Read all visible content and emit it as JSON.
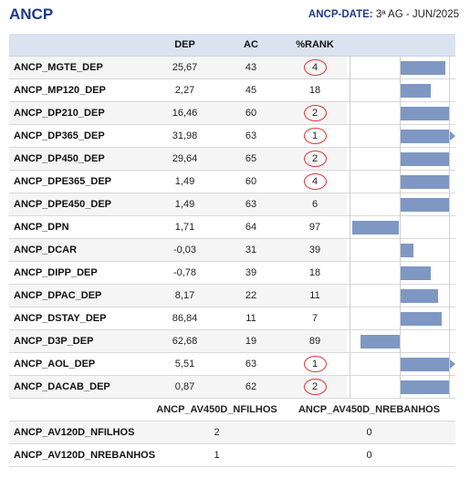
{
  "title": "ANCP",
  "date_label": "ANCP-DATE:",
  "date_value": "3ª AG - JUN/2025",
  "columns": {
    "name": "",
    "dep": "DEP",
    "ac": "AC",
    "rank": "%RANK"
  },
  "rows": [
    {
      "name": "ANCP_MGTE_DEP",
      "dep": "25,67",
      "ac": "43",
      "rank": "4",
      "circled": true,
      "dep_value": 25.67
    },
    {
      "name": "ANCP_MP120_DEP",
      "dep": "2,27",
      "ac": "45",
      "rank": "18",
      "circled": false,
      "dep_value": 2.27
    },
    {
      "name": "ANCP_DP210_DEP",
      "dep": "16,46",
      "ac": "60",
      "rank": "2",
      "circled": true,
      "dep_value": 16.46
    },
    {
      "name": "ANCP_DP365_DEP",
      "dep": "31,98",
      "ac": "63",
      "rank": "1",
      "circled": true,
      "dep_value": 31.98
    },
    {
      "name": "ANCP_DP450_DEP",
      "dep": "29,64",
      "ac": "65",
      "rank": "2",
      "circled": true,
      "dep_value": 29.64
    },
    {
      "name": "ANCP_DPE365_DEP",
      "dep": "1,49",
      "ac": "60",
      "rank": "4",
      "circled": true,
      "dep_value": 1.49
    },
    {
      "name": "ANCP_DPE450_DEP",
      "dep": "1,49",
      "ac": "63",
      "rank": "6",
      "circled": false,
      "dep_value": 1.49
    },
    {
      "name": "ANCP_DPN",
      "dep": "1,71",
      "ac": "64",
      "rank": "97",
      "circled": false,
      "dep_value": 1.71
    },
    {
      "name": "ANCP_DCAR",
      "dep": "-0,03",
      "ac": "31",
      "rank": "39",
      "circled": false,
      "dep_value": -0.03
    },
    {
      "name": "ANCP_DIPP_DEP",
      "dep": "-0,78",
      "ac": "39",
      "rank": "18",
      "circled": false,
      "dep_value": -0.78
    },
    {
      "name": "ANCP_DPAC_DEP",
      "dep": "8,17",
      "ac": "22",
      "rank": "11",
      "circled": false,
      "dep_value": 8.17
    },
    {
      "name": "ANCP_DSTAY_DEP",
      "dep": "86,84",
      "ac": "11",
      "rank": "7",
      "circled": false,
      "dep_value": 86.84
    },
    {
      "name": "ANCP_D3P_DEP",
      "dep": "62,68",
      "ac": "19",
      "rank": "89",
      "circled": false,
      "dep_value": 62.68
    },
    {
      "name": "ANCP_AOL_DEP",
      "dep": "5,51",
      "ac": "63",
      "rank": "1",
      "circled": true,
      "dep_value": 5.51
    },
    {
      "name": "ANCP_DACAB_DEP",
      "dep": "0,87",
      "ac": "62",
      "rank": "2",
      "circled": true,
      "dep_value": 0.87
    }
  ],
  "rank_bar": {
    "scale_min": -100,
    "scale_max": 100,
    "values": [
      92,
      64,
      100,
      100,
      100,
      100,
      100,
      -94,
      28,
      64,
      78,
      86,
      -78,
      100,
      100
    ],
    "overflow": [
      false,
      false,
      false,
      true,
      false,
      false,
      false,
      false,
      false,
      false,
      false,
      false,
      false,
      true,
      false
    ]
  },
  "sub_columns": {
    "name": "",
    "col1": "ANCP_AV450D_NFILHOS",
    "col2": "ANCP_AV450D_NREBANHOS"
  },
  "sub_rows": [
    {
      "name": "ANCP_AV120D_NFILHOS",
      "col1": "2",
      "col2": "0"
    },
    {
      "name": "ANCP_AV120D_NREBANHOS",
      "col1": "1",
      "col2": "0"
    }
  ],
  "colors": {
    "bar": "#7f98c3",
    "ring": "#d93b3b",
    "header_bg": "#dbe3f1",
    "title": "#1f3a8a"
  }
}
